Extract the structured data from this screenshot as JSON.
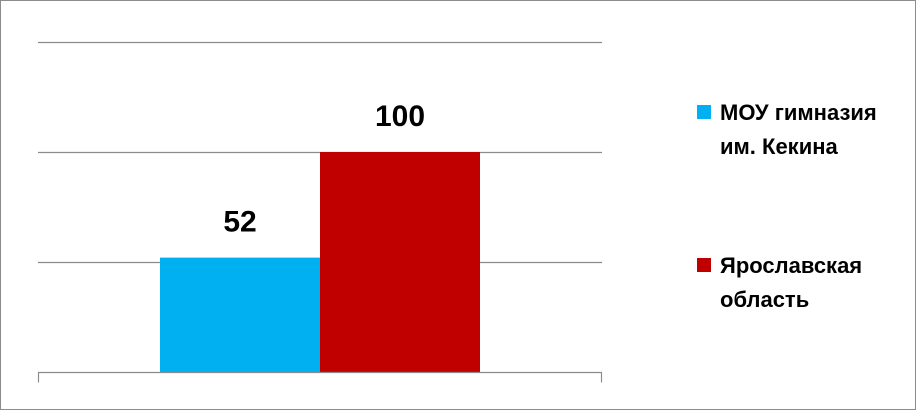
{
  "chart_data": {
    "type": "bar",
    "categories": [
      ""
    ],
    "series": [
      {
        "name": "МОУ гимназия им. Кекина",
        "values": [
          52
        ],
        "color": "#00b0f0"
      },
      {
        "name": "Ярославская область",
        "values": [
          100
        ],
        "color": "#c00000"
      }
    ],
    "ylim": [
      0,
      150
    ],
    "grid": true,
    "data_labels": true,
    "legend": {
      "position": "right",
      "entries": [
        {
          "lines": [
            "МОУ гимназия",
            "им. Кекина"
          ],
          "color": "#00b0f0"
        },
        {
          "lines": [
            "Ярославская",
            "область"
          ],
          "color": "#c00000"
        }
      ]
    }
  }
}
